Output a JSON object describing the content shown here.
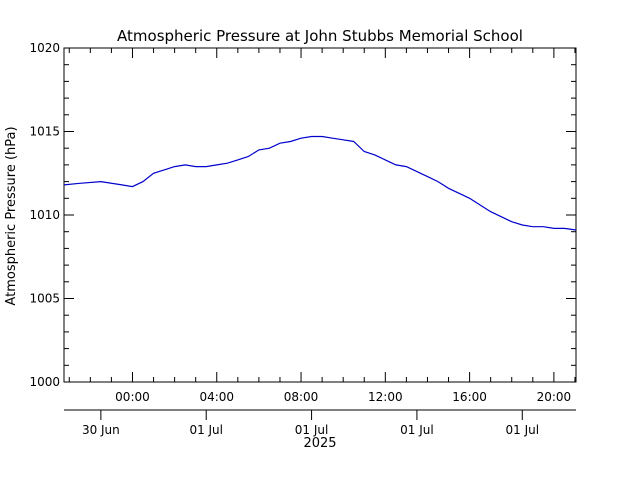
{
  "chart_data": {
    "type": "line",
    "title": "Atmospheric Pressure at John Stubbs Memorial School",
    "ylabel": "Atmospheric Pressure (hPa)",
    "ylim": [
      1000,
      1020
    ],
    "y_ticks": [
      1000,
      1005,
      1010,
      1015,
      1020
    ],
    "x_unit": "hours relative to 2025-07-01 00:00",
    "xlim": [
      -3.25,
      21.05
    ],
    "x_time_ticks": [
      {
        "x": 0,
        "label": "00:00"
      },
      {
        "x": 4,
        "label": "04:00"
      },
      {
        "x": 8,
        "label": "08:00"
      },
      {
        "x": 12,
        "label": "12:00"
      },
      {
        "x": 16,
        "label": "16:00"
      },
      {
        "x": 20,
        "label": "20:00"
      }
    ],
    "x_date_ticks": [
      {
        "x": -1.5,
        "label": "30 Jun"
      },
      {
        "x": 3.5,
        "label": "01 Jul"
      },
      {
        "x": 8.5,
        "label": "01 Jul"
      },
      {
        "x": 13.5,
        "label": "01 Jul"
      },
      {
        "x": 18.5,
        "label": "01 Jul"
      }
    ],
    "year_label": "2025",
    "color": "#0000cc",
    "series": [
      {
        "x": [
          -3.25,
          -2.5,
          -1.5,
          -0.5,
          0,
          0.5,
          1,
          1.5,
          2,
          2.5,
          3,
          3.5,
          4,
          4.5,
          5,
          5.5,
          6,
          6.5,
          7,
          7.5,
          8,
          8.5,
          9,
          9.5,
          10,
          10.5,
          11,
          11.5,
          12,
          12.5,
          13,
          13.5,
          14,
          14.5,
          15,
          15.5,
          16,
          16.5,
          17,
          17.5,
          18,
          18.5,
          19,
          19.5,
          20,
          20.5,
          21.05
        ],
        "values": [
          1011.8,
          1011.9,
          1012.0,
          1011.8,
          1011.7,
          1012.0,
          1012.5,
          1012.7,
          1012.9,
          1013.0,
          1012.9,
          1012.9,
          1013.0,
          1013.1,
          1013.3,
          1013.5,
          1013.9,
          1014.0,
          1014.3,
          1014.4,
          1014.6,
          1014.7,
          1014.7,
          1014.6,
          1014.5,
          1014.4,
          1013.8,
          1013.6,
          1013.3,
          1013.0,
          1012.9,
          1012.6,
          1012.3,
          1012.0,
          1011.6,
          1011.3,
          1011.0,
          1010.6,
          1010.2,
          1009.9,
          1009.6,
          1009.4,
          1009.3,
          1009.3,
          1009.2,
          1009.2,
          1009.1
        ]
      }
    ]
  }
}
